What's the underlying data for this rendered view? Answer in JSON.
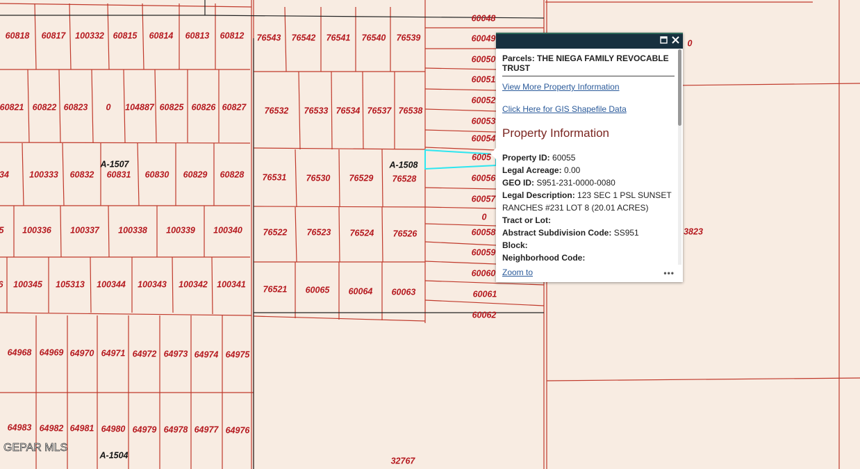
{
  "map": {
    "parcel_labels": [
      "60818",
      "60817",
      "100332",
      "60815",
      "60814",
      "60813",
      "60812",
      "76543",
      "76542",
      "76541",
      "76540",
      "76539",
      "60821",
      "60822",
      "60823",
      "0",
      "104887",
      "60825",
      "60826",
      "60827",
      "76532",
      "76533",
      "76534",
      "76537",
      "76538",
      "34",
      "100333",
      "60832",
      "60831",
      "60830",
      "60829",
      "60828",
      "76531",
      "76530",
      "76529",
      "76528",
      "5",
      "100336",
      "100337",
      "100338",
      "100339",
      "100340",
      "76522",
      "76523",
      "76524",
      "76526",
      "6",
      "100345",
      "105313",
      "100344",
      "100343",
      "100342",
      "100341",
      "76521",
      "60065",
      "60064",
      "60063",
      "64968",
      "64969",
      "64970",
      "64971",
      "64972",
      "64973",
      "64974",
      "64975",
      "64983",
      "64982",
      "64981",
      "64980",
      "64979",
      "64978",
      "64977",
      "64976",
      "60048",
      "60049",
      "60050",
      "60051",
      "60052",
      "60053",
      "60054",
      "6005",
      "60056",
      "60057",
      "0",
      "60058",
      "60059",
      "60060",
      "60061",
      "60062",
      "0",
      "3823",
      "32767"
    ],
    "abstract_labels": [
      "A-1507",
      "A-1508",
      "A-1504"
    ],
    "watermark": "GEPAR MLS"
  },
  "popup": {
    "title": "Parcels: THE NIEGA FAMILY REVOCABLE TRUST",
    "links": [
      "View More Property Information",
      "Click Here for GIS Shapefile Data"
    ],
    "heading": "Property Information",
    "fields": [
      {
        "label": "Property ID:",
        "value": "60055"
      },
      {
        "label": "Legal Acreage:",
        "value": "0.00"
      },
      {
        "label": "GEO ID:",
        "value": "S951-231-0000-0080"
      },
      {
        "label": "Legal Description:",
        "value": "123 SEC 1 PSL SUNSET RANCHES #231 LOT 8 (20.01 ACRES)"
      },
      {
        "label": "Tract or Lot:",
        "value": ""
      },
      {
        "label": "Abstract Subdivision Code:",
        "value": "SS951"
      },
      {
        "label": "Block:",
        "value": ""
      },
      {
        "label": "Neighborhood Code:",
        "value": ""
      }
    ],
    "zoom": "Zoom to"
  }
}
